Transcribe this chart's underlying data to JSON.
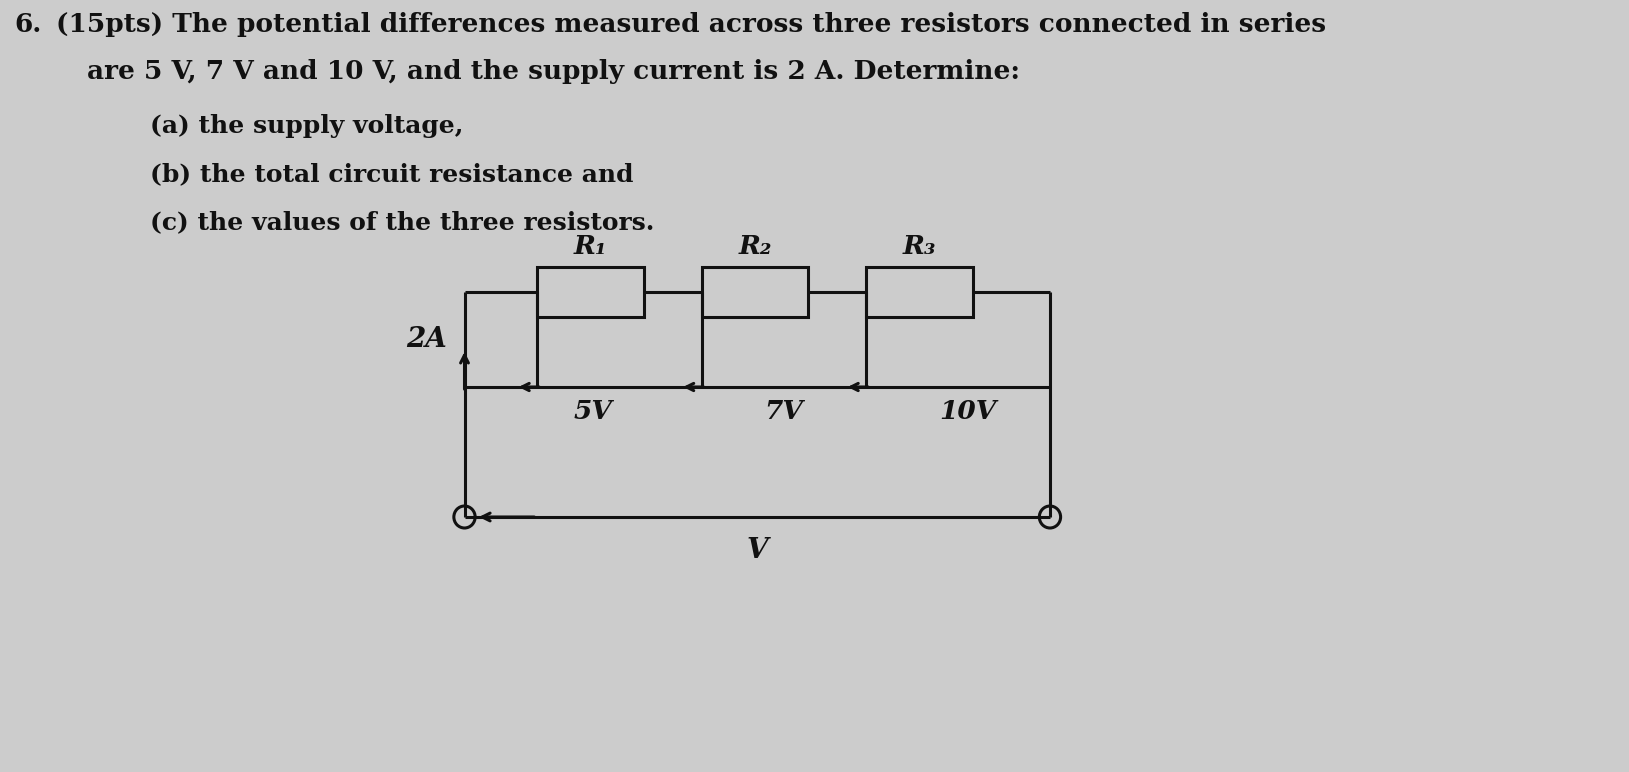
{
  "background_color": "#cccccc",
  "text_color": "#111111",
  "question_number": "6.",
  "question_pts": "(15pts)",
  "question_line1": "The potential differences measured across three resistors connected in series",
  "question_line2": "are 5 V, 7 V and 10 V, and the supply current is 2 A. Determine:",
  "sub_a": "(a) the supply voltage,",
  "sub_b": "(b) the total circuit resistance and",
  "sub_c": "(c) the values of the three resistors.",
  "voltages": [
    "5V",
    "7V",
    "10V"
  ],
  "resistor_labels": [
    "R₁",
    "R₂",
    "R₃"
  ],
  "current_label": "2A",
  "supply_label": "V",
  "font_size_main": 19,
  "font_size_sub": 18,
  "font_size_circuit": 17,
  "wire_color": "#111111",
  "lw": 2.2
}
